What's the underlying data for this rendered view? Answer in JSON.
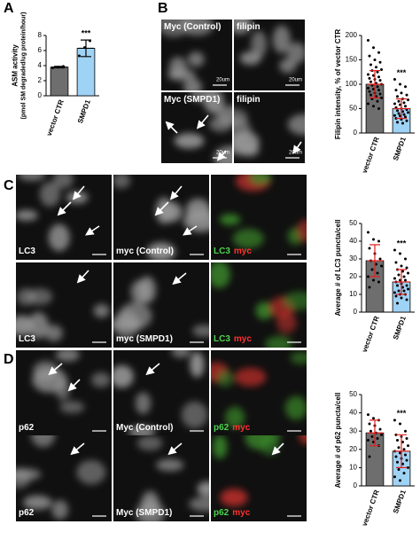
{
  "panel_labels": [
    "A",
    "B",
    "C",
    "D"
  ],
  "micrographs": {
    "B": {
      "tiles": [
        [
          "Myc (Control)"
        ],
        [
          "filipin"
        ],
        [
          "Myc (SMPD1)"
        ],
        [
          "filipin"
        ]
      ],
      "scale_bars": [
        "20um",
        "20um",
        "20um",
        "20um"
      ]
    },
    "C": {
      "tiles": [
        [
          "LC3"
        ],
        [
          "myc (Control)"
        ],
        [
          "LC3",
          "myc"
        ],
        [
          "LC3"
        ],
        [
          "myc (SMPD1)"
        ],
        [
          "LC3",
          "myc"
        ]
      ]
    },
    "D": {
      "tiles": [
        [
          "p62"
        ],
        [
          "Myc (Control)"
        ],
        [
          "p62",
          "myc"
        ],
        [
          "p62"
        ],
        [
          "Myc (SMPD1)"
        ],
        [
          "p62",
          "myc"
        ]
      ]
    }
  },
  "chart_data": [
    {
      "type": "bar",
      "y_label": [
        "ASM activity",
        "(pmol SM degraded/ug protein/hour)"
      ],
      "categories": [
        "vector CTR",
        "SMPD1"
      ],
      "values": [
        3.8,
        6.3
      ],
      "errors": [
        0.1,
        1.1
      ],
      "points": [
        [
          3.7,
          3.8,
          3.9
        ],
        [
          5.3,
          6.4,
          7.3
        ]
      ],
      "colors": [
        "#6e6e6e",
        "#9fd3f5"
      ],
      "error_color": "#000000",
      "annotation": "***",
      "ylim": [
        0,
        8
      ],
      "yticks": [
        0,
        2,
        4,
        6,
        8
      ]
    },
    {
      "type": "bar",
      "y_label": [
        "Filipin intensity, % of vector CTR"
      ],
      "categories": [
        "vector CTR",
        "SMPD1"
      ],
      "values": [
        100,
        50
      ],
      "errors": [
        28,
        20
      ],
      "points": [
        [
          190,
          175,
          165,
          158,
          150,
          145,
          140,
          135,
          130,
          128,
          125,
          120,
          118,
          115,
          112,
          110,
          108,
          105,
          102,
          100,
          98,
          95,
          92,
          90,
          88,
          85,
          82,
          80,
          78,
          75,
          72,
          70,
          65,
          60,
          55,
          50
        ],
        [
          110,
          100,
          95,
          88,
          82,
          78,
          75,
          70,
          68,
          65,
          62,
          60,
          58,
          55,
          52,
          50,
          48,
          46,
          44,
          42,
          40,
          38,
          36,
          35,
          33,
          30,
          28,
          25,
          22,
          20
        ]
      ],
      "colors": [
        "#6e6e6e",
        "#9fd3f5"
      ],
      "error_color": "#e02020",
      "annotation": "***",
      "ylim": [
        0,
        200
      ],
      "yticks": [
        0,
        50,
        100,
        150,
        200
      ]
    },
    {
      "type": "bar",
      "y_label": [
        "Average # of LC3 puncta/cell"
      ],
      "categories": [
        "vector CTR",
        "SMPD1"
      ],
      "values": [
        29,
        17
      ],
      "errors": [
        9,
        7
      ],
      "points": [
        [
          45,
          41,
          40,
          36,
          33,
          30,
          29,
          27,
          26,
          24,
          22,
          20,
          18,
          17,
          14
        ],
        [
          35,
          33,
          30,
          28,
          26,
          25,
          24,
          23,
          22,
          21,
          20,
          19,
          18,
          18,
          17,
          16,
          15,
          15,
          14,
          13,
          12,
          12,
          11,
          10,
          10,
          9,
          8,
          7,
          5
        ]
      ],
      "colors": [
        "#6e6e6e",
        "#9fd3f5"
      ],
      "error_color": "#e02020",
      "annotation": "***",
      "ylim": [
        0,
        50
      ],
      "yticks": [
        0,
        10,
        20,
        30,
        40,
        50
      ]
    },
    {
      "type": "bar",
      "y_label": [
        "Average # of p62 puncta/cell"
      ],
      "categories": [
        "vector CTR",
        "SMPD1"
      ],
      "values": [
        29,
        19
      ],
      "errors": [
        7,
        9
      ],
      "points": [
        [
          39,
          37,
          36,
          34,
          33,
          31,
          30,
          29,
          28,
          27,
          26,
          25,
          24,
          22,
          16
        ],
        [
          36,
          34,
          30,
          28,
          27,
          26,
          25,
          24,
          22,
          21,
          20,
          19,
          18,
          17,
          16,
          15,
          14,
          13,
          12,
          10,
          9,
          7,
          5,
          3
        ]
      ],
      "colors": [
        "#6e6e6e",
        "#9fd3f5"
      ],
      "error_color": "#e02020",
      "annotation": "***",
      "ylim": [
        0,
        50
      ],
      "yticks": [
        0,
        10,
        20,
        30,
        40,
        50
      ]
    }
  ]
}
